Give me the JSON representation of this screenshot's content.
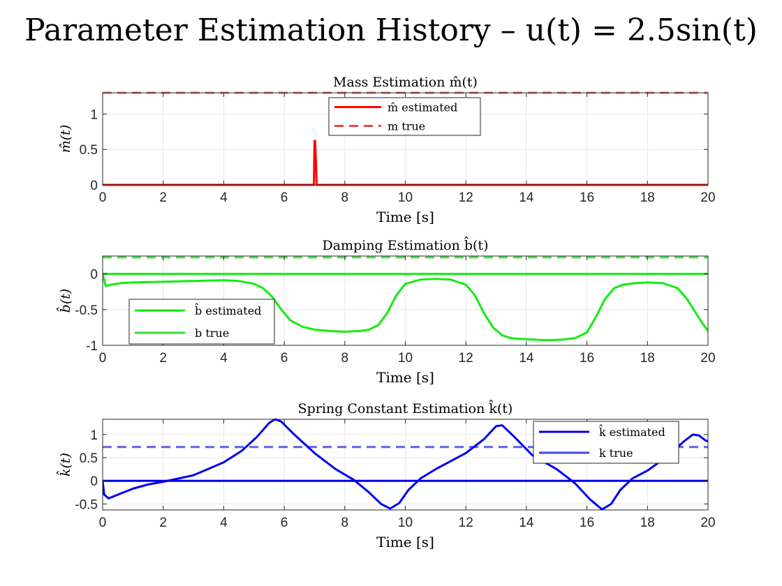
{
  "figure": {
    "title": "Parameter Estimation History – u(t) = 2.5sin(t)"
  },
  "colors": {
    "mass": "#ff0000",
    "mass_true": "#ee4444",
    "damping": "#11ee11",
    "damping_true": "#33dd33",
    "spring": "#0000ee",
    "spring_true": "#4444ee",
    "grid": "#e6e6e6",
    "axis": "#262626"
  },
  "chart_data": [
    {
      "type": "line",
      "title": "Mass Estimation m̂(t)",
      "xlabel": "Time [s]",
      "ylabel": "m̂(t)",
      "xlim": [
        0,
        20
      ],
      "ylim": [
        0,
        1.3
      ],
      "xticks": [
        0,
        2,
        4,
        6,
        8,
        10,
        12,
        14,
        16,
        18,
        20
      ],
      "yticks": [
        0,
        0.5,
        1
      ],
      "grid": true,
      "legend": {
        "placement": "top-center",
        "entries": [
          "m̂ estimated",
          "m true"
        ]
      },
      "series": [
        {
          "name": "m̂ estimated",
          "style": "solid",
          "x": [
            0,
            6.98,
            7.0,
            7.02,
            7.05,
            7.07,
            20
          ],
          "y": [
            0,
            0,
            0.62,
            0.62,
            0.3,
            0,
            0
          ]
        },
        {
          "name": "m true",
          "style": "dashed",
          "x": [
            0,
            20
          ],
          "y": [
            1.3,
            1.3
          ]
        }
      ]
    },
    {
      "type": "line",
      "title": "Damping Estimation b̂(t)",
      "xlabel": "Time [s]",
      "ylabel": "b̂(t)",
      "xlim": [
        0,
        20
      ],
      "ylim": [
        -1,
        0.25
      ],
      "xticks": [
        0,
        2,
        4,
        6,
        8,
        10,
        12,
        14,
        16,
        18,
        20
      ],
      "yticks": [
        -1,
        -0.5,
        0
      ],
      "grid": true,
      "legend": {
        "placement": "bottom-left",
        "entries": [
          "b̂ estimated",
          "b true"
        ]
      },
      "series": [
        {
          "name": "b̂ estimated",
          "style": "solid",
          "x": [
            0,
            20
          ],
          "y": [
            0,
            0
          ]
        },
        {
          "name": "b true",
          "style": "dashed",
          "x": [
            0,
            20
          ],
          "y": [
            0.23,
            0.23
          ]
        },
        {
          "name": "",
          "style": "solid",
          "x": [
            0,
            0.1,
            0.3,
            0.6,
            1,
            2,
            3,
            4,
            4.5,
            5,
            5.3,
            5.6,
            5.9,
            6.2,
            6.6,
            7,
            7.5,
            8,
            8.5,
            8.8,
            9.1,
            9.4,
            9.7,
            10,
            10.5,
            11,
            11.5,
            12,
            12.3,
            12.6,
            12.9,
            13.2,
            13.5,
            13.8,
            14.2,
            14.7,
            15.2,
            15.6,
            16,
            16.3,
            16.6,
            16.9,
            17.2,
            17.6,
            18,
            18.5,
            19,
            19.3,
            19.6,
            19.8,
            20
          ],
          "y": [
            0,
            -0.17,
            -0.15,
            -0.13,
            -0.12,
            -0.11,
            -0.1,
            -0.09,
            -0.1,
            -0.14,
            -0.2,
            -0.32,
            -0.5,
            -0.65,
            -0.74,
            -0.78,
            -0.8,
            -0.81,
            -0.8,
            -0.78,
            -0.72,
            -0.55,
            -0.3,
            -0.14,
            -0.08,
            -0.07,
            -0.08,
            -0.15,
            -0.3,
            -0.55,
            -0.75,
            -0.86,
            -0.9,
            -0.91,
            -0.92,
            -0.93,
            -0.92,
            -0.9,
            -0.82,
            -0.6,
            -0.35,
            -0.2,
            -0.15,
            -0.13,
            -0.12,
            -0.13,
            -0.2,
            -0.35,
            -0.55,
            -0.68,
            -0.8
          ]
        }
      ]
    },
    {
      "type": "line",
      "title": "Spring Constant Estimation k̂(t)",
      "xlabel": "Time [s]",
      "ylabel": "k̂(t)",
      "xlim": [
        0,
        20
      ],
      "ylim": [
        -0.63,
        1.33
      ],
      "xticks": [
        0,
        2,
        4,
        6,
        8,
        10,
        12,
        14,
        16,
        18,
        20
      ],
      "yticks": [
        -0.5,
        0,
        0.5,
        1
      ],
      "grid": true,
      "legend": {
        "placement": "top-right",
        "entries": [
          "k̂ estimated",
          "k true"
        ]
      },
      "series": [
        {
          "name": "k̂ estimated",
          "style": "solid",
          "x": [
            0,
            20
          ],
          "y": [
            0,
            0
          ]
        },
        {
          "name": "k true",
          "style": "dashed",
          "x": [
            0,
            20
          ],
          "y": [
            0.73,
            0.73
          ]
        },
        {
          "name": "",
          "style": "solid",
          "x": [
            0,
            0.05,
            0.2,
            0.5,
            1,
            1.5,
            2,
            3,
            4,
            4.6,
            5.1,
            5.5,
            5.7,
            5.9,
            6.3,
            7,
            7.7,
            8.3,
            8.8,
            9.2,
            9.5,
            9.8,
            10.1,
            10.5,
            11,
            12,
            12.6,
            13,
            13.2,
            13.6,
            14.2,
            15,
            15.6,
            16.1,
            16.5,
            16.8,
            17.1,
            17.5,
            18,
            18.7,
            19.2,
            19.5,
            19.7,
            19.9,
            20
          ],
          "y": [
            0,
            -0.3,
            -0.38,
            -0.3,
            -0.17,
            -0.08,
            -0.02,
            0.12,
            0.4,
            0.65,
            0.95,
            1.25,
            1.33,
            1.28,
            1.02,
            0.6,
            0.25,
            0.02,
            -0.25,
            -0.5,
            -0.6,
            -0.48,
            -0.2,
            0.05,
            0.25,
            0.6,
            0.9,
            1.18,
            1.2,
            0.95,
            0.55,
            0.25,
            -0.05,
            -0.4,
            -0.62,
            -0.5,
            -0.2,
            0.05,
            0.22,
            0.55,
            0.85,
            1.0,
            0.98,
            0.88,
            0.85
          ]
        }
      ]
    }
  ]
}
